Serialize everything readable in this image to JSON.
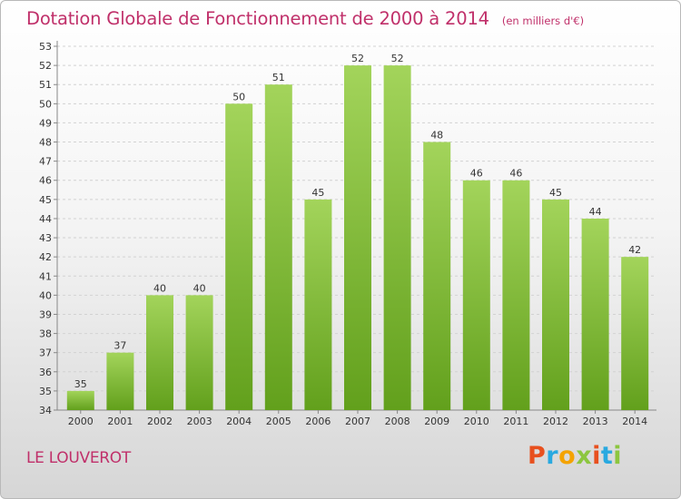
{
  "header": {
    "title": "Dotation Globale de Fonctionnement de 2000 à 2014",
    "subtitle": "(en milliers d'€)"
  },
  "footer": {
    "commune": "LE LOUVEROT",
    "logo_letters": [
      "P",
      "r",
      "o",
      "x",
      "i",
      "t",
      "i"
    ],
    "logo_colors": [
      "#e8501e",
      "#29a9e0",
      "#f4a300",
      "#8cc63f",
      "#e8501e",
      "#29a9e0",
      "#8cc63f"
    ]
  },
  "chart_data": {
    "type": "bar",
    "title": "Dotation Globale de Fonctionnement de 2000 à 2014",
    "subtitle": "(en milliers d'€)",
    "xlabel": "",
    "ylabel": "",
    "categories": [
      "2000",
      "2001",
      "2002",
      "2003",
      "2004",
      "2005",
      "2006",
      "2007",
      "2008",
      "2009",
      "2010",
      "2011",
      "2012",
      "2013",
      "2014"
    ],
    "values": [
      35,
      37,
      40,
      40,
      50,
      51,
      45,
      52,
      52,
      48,
      46,
      46,
      45,
      44,
      42
    ],
    "ylim": [
      34,
      53
    ],
    "yticks": [
      34,
      35,
      36,
      37,
      38,
      39,
      40,
      41,
      42,
      43,
      44,
      45,
      46,
      47,
      48,
      49,
      50,
      51,
      52,
      53
    ],
    "grid": true,
    "legend": "none",
    "bar_color_top": "#a3d45b",
    "bar_color_bottom": "#62a01c"
  }
}
